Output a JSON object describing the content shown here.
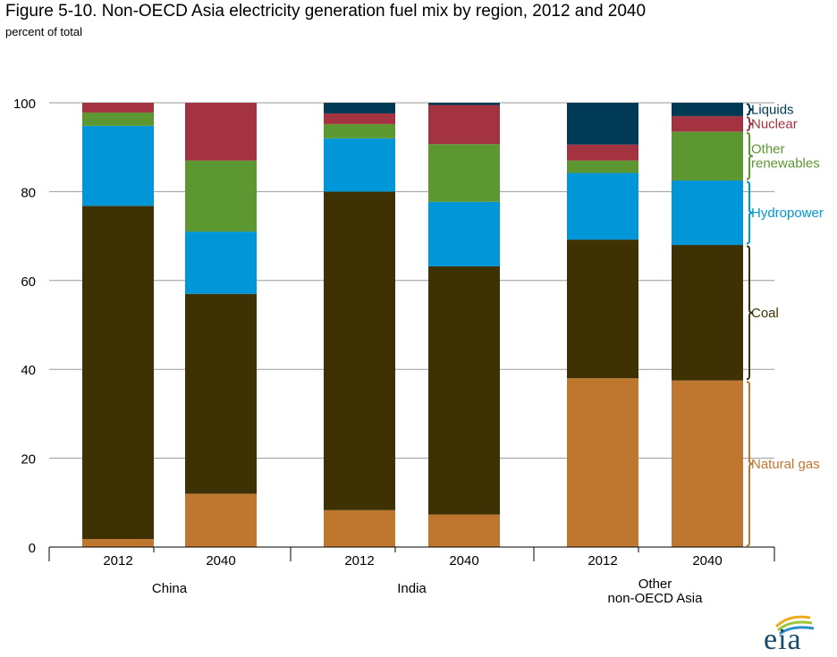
{
  "title": "Figure 5-10. Non-OECD Asia electricity generation fuel mix by region, 2012 and 2040",
  "subtitle": "percent of total",
  "logo_text": "eia",
  "chart_data": {
    "type": "bar",
    "stacked": true,
    "ylim": [
      0,
      100
    ],
    "yticks": [
      0,
      20,
      40,
      60,
      80,
      100
    ],
    "grid": true,
    "legend_placement": "right, bracketed beside last bar",
    "groups": [
      {
        "name": "China",
        "name_lines": [
          "China"
        ],
        "years": [
          "2012",
          "2040"
        ]
      },
      {
        "name": "India",
        "name_lines": [
          "India"
        ],
        "years": [
          "2012",
          "2040"
        ]
      },
      {
        "name": "Other non-OECD Asia",
        "name_lines": [
          "Other",
          "non-OECD Asia"
        ],
        "years": [
          "2012",
          "2040"
        ]
      }
    ],
    "series": [
      {
        "name": "Natural gas",
        "label_lines": [
          "Natural gas"
        ],
        "color": "#bf772f",
        "values": [
          1.8,
          12,
          8.3,
          7.3,
          38,
          37.5
        ]
      },
      {
        "name": "Coal",
        "label_lines": [
          "Coal"
        ],
        "color": "#3e3204",
        "values": [
          75,
          45,
          71.7,
          55.9,
          31.2,
          30.5
        ]
      },
      {
        "name": "Hydropower",
        "label_lines": [
          "Hydropower"
        ],
        "color": "#0096d7",
        "values": [
          18,
          14,
          12,
          14.5,
          15,
          14.5
        ]
      },
      {
        "name": "Other renewables",
        "label_lines": [
          "Other",
          "renewables"
        ],
        "color": "#5d9732",
        "values": [
          3,
          16,
          3.2,
          13,
          2.8,
          11
        ]
      },
      {
        "name": "Nuclear",
        "label_lines": [
          "Nuclear"
        ],
        "color": "#a33340",
        "values": [
          2.2,
          13,
          2.4,
          8.8,
          3.6,
          3.5
        ]
      },
      {
        "name": "Liquids",
        "label_lines": [
          "Liquids"
        ],
        "color": "#003953",
        "values": [
          0,
          0,
          2.4,
          0.5,
          9.4,
          3
        ]
      }
    ]
  }
}
